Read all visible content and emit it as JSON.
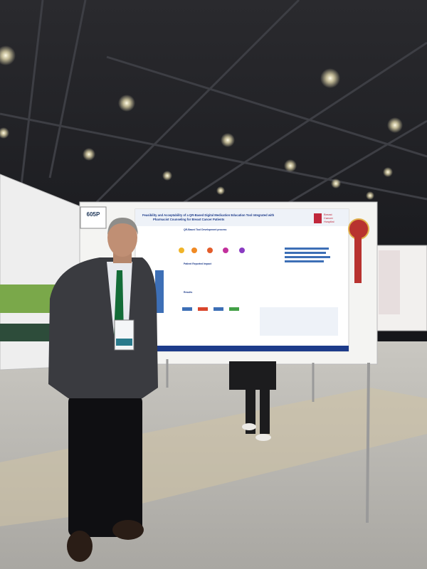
{
  "board_label": "605P",
  "poster": {
    "title_lines": [
      "Feasibility and Acceptability of a QR-Based Digital Medication Education Tool Integrated with",
      "Pharmacist Counseling for Breast Cancer Patients"
    ],
    "logo": [
      "Breast",
      "Cancer",
      "Hospital"
    ],
    "sections": [
      "QR-Based Tool Development process",
      "Patient Reported Impact",
      "Results"
    ]
  }
}
